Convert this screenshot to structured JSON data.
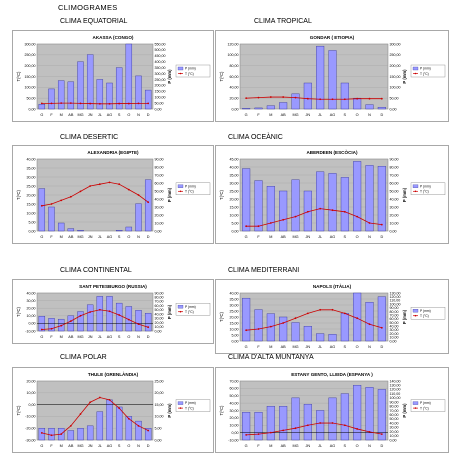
{
  "page_title": "CLIMOGRAMES",
  "months": [
    "G",
    "F",
    "M",
    "AB",
    "MG",
    "JN",
    "JL",
    "AG",
    "S",
    "O",
    "N",
    "D"
  ],
  "legend": {
    "precip": "P (mm)",
    "temp": "T (°C)"
  },
  "axis": {
    "left": "T(ºC)",
    "right": "P (mm)"
  },
  "colors": {
    "bar": "#9999ff",
    "bar_edge": "#333399",
    "line": "#cc0000",
    "plot_bg": "#c0c0c0"
  },
  "chart_data": [
    {
      "type": "bar",
      "title": "CLIMA EQUATORIAL",
      "station": "AKASSA (CONGO)",
      "categories": [
        "G",
        "F",
        "M",
        "AB",
        "MG",
        "JN",
        "JL",
        "AG",
        "S",
        "O",
        "N",
        "D"
      ],
      "left_ticks": [
        "0,00",
        "50,00",
        "100,00",
        "150,00",
        "200,00",
        "250,00",
        "300,00"
      ],
      "right_ticks": [
        "0,00",
        "50,00",
        "100,00",
        "150,00",
        "200,00",
        "250,00",
        "300,00",
        "350,00",
        "400,00",
        "450,00",
        "500,00",
        "550,00"
      ],
      "t_range": [
        0,
        300
      ],
      "p_range": [
        0,
        550
      ],
      "series": [
        {
          "name": "P (mm)",
          "values": [
            40,
            170,
            240,
            230,
            400,
            460,
            250,
            220,
            350,
            570,
            280,
            160
          ]
        },
        {
          "name": "T (°C)",
          "values": [
            26,
            26,
            27,
            27,
            26,
            25,
            24,
            24,
            25,
            25,
            26,
            26
          ]
        }
      ]
    },
    {
      "type": "bar",
      "title": "CLIMA TROPICAL",
      "station": "GONDAR ( ETIOPIA)",
      "categories": [
        "G",
        "F",
        "M",
        "AB",
        "MG",
        "JN",
        "JL",
        "AG",
        "S",
        "O",
        "N",
        "D"
      ],
      "left_ticks": [
        "0,00",
        "20,00",
        "40,00",
        "60,00",
        "80,00",
        "100,00",
        "120,00"
      ],
      "right_ticks": [
        "0,00",
        "50,00",
        "100,00",
        "150,00",
        "200,00",
        "250,00",
        "300,00"
      ],
      "t_range": [
        0,
        120
      ],
      "p_range": [
        0,
        300
      ],
      "series": [
        {
          "name": "P (mm)",
          "values": [
            3,
            5,
            15,
            30,
            70,
            120,
            290,
            270,
            120,
            50,
            20,
            8
          ]
        },
        {
          "name": "T (°C)",
          "values": [
            20,
            21,
            22,
            22,
            21,
            19,
            18,
            18,
            18,
            19,
            19,
            19
          ]
        }
      ]
    },
    {
      "type": "bar",
      "title": "CLIMA DESERTIC",
      "station": "ALEXANDRIA (EGIPTE)",
      "categories": [
        "G",
        "F",
        "M",
        "AB",
        "MG",
        "JN",
        "JL",
        "AG",
        "S",
        "O",
        "N",
        "D"
      ],
      "left_ticks": [
        "0,00",
        "5,00",
        "10,00",
        "15,00",
        "20,00",
        "25,00",
        "30,00",
        "35,00",
        "40,00"
      ],
      "right_ticks": [
        "0,00",
        "10,00",
        "20,00",
        "30,00",
        "40,00",
        "50,00",
        "60,00",
        "70,00",
        "80,00",
        "90,00"
      ],
      "t_range": [
        0,
        40
      ],
      "p_range": [
        0,
        90
      ],
      "series": [
        {
          "name": "P (mm)",
          "values": [
            53,
            30,
            10,
            3,
            1,
            0,
            0,
            0,
            1,
            5,
            34,
            64
          ]
        },
        {
          "name": "T (°C)",
          "values": [
            14,
            15,
            17,
            19,
            22,
            25,
            26,
            27,
            26,
            23,
            20,
            16
          ]
        }
      ]
    },
    {
      "type": "bar",
      "title": "CLIMA OCEÀNIC",
      "station": "ABERDEEN (ESCÒCIA)",
      "categories": [
        "G",
        "F",
        "M",
        "AB",
        "MG",
        "JN",
        "JL",
        "AG",
        "S",
        "O",
        "N",
        "D"
      ],
      "left_ticks": [
        "0,00",
        "5,00",
        "10,00",
        "15,00",
        "20,00",
        "25,00",
        "30,00",
        "35,00",
        "40,00",
        "45,00"
      ],
      "right_ticks": [
        "0,00",
        "10,00",
        "20,00",
        "30,00",
        "40,00",
        "50,00",
        "60,00",
        "70,00",
        "80,00",
        "90,00"
      ],
      "t_range": [
        0,
        45
      ],
      "p_range": [
        0,
        90
      ],
      "series": [
        {
          "name": "P (mm)",
          "values": [
            78,
            63,
            56,
            50,
            64,
            50,
            74,
            72,
            67,
            87,
            82,
            81
          ]
        },
        {
          "name": "T (°C)",
          "values": [
            3,
            3,
            5,
            7,
            9,
            12,
            14,
            13,
            12,
            9,
            5,
            4
          ]
        }
      ]
    },
    {
      "type": "bar",
      "title": "CLIMA CONTINENTAL",
      "station": "SANT PETESBURGO (RUSSIA)",
      "categories": [
        "G",
        "F",
        "M",
        "AB",
        "MG",
        "JN",
        "JL",
        "AG",
        "S",
        "O",
        "N",
        "D"
      ],
      "left_ticks": [
        "-10,00",
        "0,00",
        "10,00",
        "20,00",
        "30,00",
        "40,00"
      ],
      "right_ticks": [
        "0,00",
        "10,00",
        "20,00",
        "30,00",
        "40,00",
        "50,00",
        "60,00",
        "70,00",
        "80,00",
        "90,00"
      ],
      "t_range": [
        -10,
        40
      ],
      "p_range": [
        0,
        90
      ],
      "series": [
        {
          "name": "P (mm)",
          "values": [
            35,
            30,
            28,
            36,
            46,
            62,
            82,
            82,
            66,
            58,
            49,
            42
          ]
        },
        {
          "name": "T (°C)",
          "values": [
            -8,
            -7,
            -3,
            3,
            10,
            15,
            18,
            16,
            11,
            5,
            -1,
            -5
          ]
        }
      ]
    },
    {
      "type": "bar",
      "title": "CLIMA MEDITERRANI",
      "station": "NAPOLS (ITÀLIA)",
      "categories": [
        "G",
        "F",
        "M",
        "AB",
        "MG",
        "JN",
        "JL",
        "AG",
        "S",
        "O",
        "N",
        "D"
      ],
      "left_ticks": [
        "0,00",
        "5,00",
        "10,00",
        "15,00",
        "20,00",
        "25,00",
        "30,00",
        "35,00",
        "40,00"
      ],
      "right_ticks": [
        "0,00",
        "10,00",
        "20,00",
        "30,00",
        "40,00",
        "50,00",
        "60,00",
        "70,00",
        "80,00",
        "90,00",
        "100,00",
        "110,00",
        "120,00",
        "130,00"
      ],
      "t_range": [
        0,
        40
      ],
      "p_range": [
        0,
        130
      ],
      "series": [
        {
          "name": "P (mm)",
          "values": [
            116,
            85,
            74,
            65,
            50,
            40,
            20,
            18,
            75,
            130,
            105,
            120
          ]
        },
        {
          "name": "T (°C)",
          "values": [
            9,
            10,
            12,
            15,
            19,
            23,
            26,
            26,
            23,
            19,
            14,
            11
          ]
        }
      ]
    },
    {
      "type": "bar",
      "title": "CLIMA POLAR",
      "station": "THULE (GRENLÀNDIA)",
      "categories": [
        "G",
        "F",
        "M",
        "AB",
        "MG",
        "JN",
        "JL",
        "AG",
        "S",
        "O",
        "N",
        "D"
      ],
      "left_ticks": [
        "-30,00",
        "-20,00",
        "-10,00",
        "0,00",
        "10,00",
        "20,00"
      ],
      "right_ticks": [
        "0,00",
        "5,00",
        "10,00",
        "15,00",
        "20,00",
        "25,00"
      ],
      "t_range": [
        -30,
        20
      ],
      "p_range": [
        0,
        25
      ],
      "series": [
        {
          "name": "P (mm)",
          "values": [
            5,
            5,
            5,
            4,
            5,
            6,
            12,
            17,
            14,
            10,
            8,
            5
          ]
        },
        {
          "name": "T (°C)",
          "values": [
            -24,
            -26,
            -25,
            -18,
            -8,
            2,
            6,
            4,
            -3,
            -12,
            -18,
            -22
          ]
        }
      ]
    },
    {
      "type": "bar",
      "title": "CLIMA D'ALTA MUNTANYA",
      "station": "ESTANY GENTO, LLEIDA (ESPANYA )",
      "categories": [
        "G",
        "F",
        "M",
        "AB",
        "MG",
        "JN",
        "JL",
        "AG",
        "S",
        "O",
        "N",
        "D"
      ],
      "left_ticks": [
        "-10,00",
        "0,00",
        "10,00",
        "20,00",
        "30,00",
        "40,00",
        "50,00",
        "60,00",
        "70,00"
      ],
      "right_ticks": [
        "0,00",
        "10,00",
        "20,00",
        "30,00",
        "40,00",
        "50,00",
        "60,00",
        "70,00",
        "80,00",
        "90,00",
        "100,00",
        "110,00",
        "120,00",
        "130,00",
        "140,00"
      ],
      "t_range": [
        -10,
        70
      ],
      "p_range": [
        0,
        140
      ],
      "series": [
        {
          "name": "P (mm)",
          "values": [
            66,
            66,
            80,
            80,
            100,
            85,
            70,
            100,
            110,
            130,
            125,
            120
          ]
        },
        {
          "name": "T (°C)",
          "values": [
            -3,
            -2,
            0,
            3,
            6,
            10,
            13,
            13,
            10,
            5,
            1,
            -2
          ]
        }
      ]
    }
  ]
}
